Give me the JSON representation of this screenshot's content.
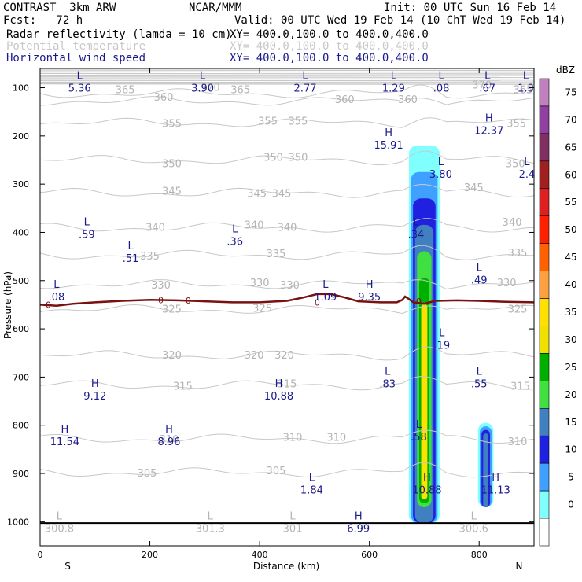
{
  "header": {
    "left_title": "CONTRAST  3km ARW",
    "center_title": "NCAR/MMM",
    "init": "Init: 00 UTC Sun 16 Feb 14",
    "fcst": "Fcst:   72 h",
    "valid": "Valid: 00 UTC Wed 19 Feb 14 (10 ChT Wed 19 Feb 14)",
    "fields": [
      {
        "name": "Radar reflectivity (lamda = 10 cm)",
        "xy": "XY= 400.0,100.0 to 400.0,400.0",
        "color": "#000000"
      },
      {
        "name": "Potential temperature",
        "xy": "XY= 400.0,100.0 to 400.0,400.0",
        "color": "#c8c8c8"
      },
      {
        "name": "Horizontal wind speed",
        "xy": "XY= 400.0,100.0 to 400.0,400.0",
        "color": "#1a1a8c"
      }
    ]
  },
  "colorbar": {
    "unit": "dBZ",
    "ticks": [
      "75",
      "70",
      "65",
      "60",
      "55",
      "50",
      "45",
      "40",
      "35",
      "30",
      "25",
      "20",
      "15",
      "10",
      "5",
      "0"
    ],
    "colors": [
      "#c080c0",
      "#9040a0",
      "#803060",
      "#a02020",
      "#e02020",
      "#ff2000",
      "#ff6000",
      "#ffa040",
      "#ffe000",
      "#f0e000",
      "#00b000",
      "#40e040",
      "#4080c0",
      "#2020e0",
      "#40a0ff",
      "#80ffff",
      "#ffffff"
    ]
  },
  "chart_data": {
    "type": "contour",
    "xlabel": "Distance (km)",
    "ylabel": "Pressure (hPa)",
    "x_ticks": [
      "0",
      "200",
      "400",
      "600",
      "800"
    ],
    "x_end_labels": {
      "left": "S",
      "right": "N"
    },
    "y_ticks": [
      "100",
      "200",
      "300",
      "400",
      "500",
      "600",
      "700",
      "800",
      "900",
      "1000"
    ],
    "xlim": [
      0,
      900
    ],
    "ylim": [
      1050,
      60
    ],
    "theta_labels": [
      {
        "t": "365",
        "x": 155,
        "p": 105
      },
      {
        "t": "370",
        "x": 310,
        "p": 100
      },
      {
        "t": "365",
        "x": 365,
        "p": 105
      },
      {
        "t": "360",
        "x": 225,
        "p": 120
      },
      {
        "t": "360",
        "x": 555,
        "p": 125
      },
      {
        "t": "360",
        "x": 670,
        "p": 125
      },
      {
        "t": "370",
        "x": 805,
        "p": 95
      },
      {
        "t": "365",
        "x": 880,
        "p": 105
      },
      {
        "t": "355",
        "x": 415,
        "p": 170
      },
      {
        "t": "355",
        "x": 470,
        "p": 170
      },
      {
        "t": "355",
        "x": 240,
        "p": 175
      },
      {
        "t": "355",
        "x": 868,
        "p": 175
      },
      {
        "t": "350",
        "x": 425,
        "p": 245
      },
      {
        "t": "350",
        "x": 470,
        "p": 245
      },
      {
        "t": "350",
        "x": 240,
        "p": 258
      },
      {
        "t": "350",
        "x": 866,
        "p": 258
      },
      {
        "t": "345",
        "x": 395,
        "p": 320
      },
      {
        "t": "345",
        "x": 790,
        "p": 308
      },
      {
        "t": "345",
        "x": 440,
        "p": 320
      },
      {
        "t": "345",
        "x": 240,
        "p": 315
      },
      {
        "t": "340",
        "x": 210,
        "p": 390
      },
      {
        "t": "340",
        "x": 390,
        "p": 385
      },
      {
        "t": "340",
        "x": 450,
        "p": 390
      },
      {
        "t": "340",
        "x": 860,
        "p": 380
      },
      {
        "t": "335",
        "x": 200,
        "p": 450
      },
      {
        "t": "335",
        "x": 430,
        "p": 445
      },
      {
        "t": "335",
        "x": 870,
        "p": 443
      },
      {
        "t": "330",
        "x": 220,
        "p": 510
      },
      {
        "t": "330",
        "x": 400,
        "p": 505
      },
      {
        "t": "330",
        "x": 455,
        "p": 510
      },
      {
        "t": "330",
        "x": 850,
        "p": 505
      },
      {
        "t": "325",
        "x": 240,
        "p": 560
      },
      {
        "t": "325",
        "x": 405,
        "p": 558
      },
      {
        "t": "325",
        "x": 870,
        "p": 560
      },
      {
        "t": "320",
        "x": 240,
        "p": 655
      },
      {
        "t": "320",
        "x": 390,
        "p": 655
      },
      {
        "t": "320",
        "x": 445,
        "p": 655
      },
      {
        "t": "315",
        "x": 260,
        "p": 720
      },
      {
        "t": "315",
        "x": 450,
        "p": 715
      },
      {
        "t": "315",
        "x": 875,
        "p": 720
      },
      {
        "t": "310",
        "x": 235,
        "p": 830
      },
      {
        "t": "310",
        "x": 460,
        "p": 826
      },
      {
        "t": "310",
        "x": 540,
        "p": 826
      },
      {
        "t": "310",
        "x": 870,
        "p": 835
      },
      {
        "t": "305",
        "x": 195,
        "p": 900
      },
      {
        "t": "305",
        "x": 430,
        "p": 895
      }
    ],
    "theta_levels_p": [
      112,
      128,
      173,
      250,
      318,
      390,
      447,
      508,
      560,
      655,
      717,
      828,
      898
    ],
    "wind_labels": [
      {
        "t": "L",
        "v": "5.36",
        "x": 72,
        "p": 92
      },
      {
        "t": "L",
        "v": "3.90",
        "x": 296,
        "p": 92
      },
      {
        "t": "L",
        "v": "2.77",
        "x": 483,
        "p": 92
      },
      {
        "t": "L",
        "v": "1.29",
        "x": 644,
        "p": 92
      },
      {
        "t": "L",
        "v": ".08",
        "x": 731,
        "p": 92
      },
      {
        "t": "L",
        "v": ".67",
        "x": 815,
        "p": 92
      },
      {
        "t": "L",
        "v": "1.3",
        "x": 885,
        "p": 92
      },
      {
        "t": "H",
        "v": "15.91",
        "x": 635,
        "p": 210
      },
      {
        "t": "H",
        "v": "12.37",
        "x": 818,
        "p": 180
      },
      {
        "t": "L",
        "v": "3.80",
        "x": 730,
        "p": 270
      },
      {
        "t": "L",
        "v": "2.4",
        "x": 887,
        "p": 270
      },
      {
        "t": "L",
        "v": ".59",
        "x": 85,
        "p": 395
      },
      {
        "t": "L",
        "v": ".36",
        "x": 355,
        "p": 410
      },
      {
        "t": "L",
        "v": ".51",
        "x": 165,
        "p": 445
      },
      {
        "t": "L",
        "v": ".34",
        "x": 685,
        "p": 395
      },
      {
        "t": "L",
        "v": ".49",
        "x": 800,
        "p": 490
      },
      {
        "t": "L",
        "v": ".08",
        "x": 30,
        "p": 525
      },
      {
        "t": "L",
        "v": "1.09",
        "x": 520,
        "p": 525
      },
      {
        "t": "H",
        "v": "9.35",
        "x": 600,
        "p": 525
      },
      {
        "t": "L",
        "v": ".19",
        "x": 732,
        "p": 625
      },
      {
        "t": "L",
        "v": ".83",
        "x": 633,
        "p": 705
      },
      {
        "t": "L",
        "v": ".55",
        "x": 800,
        "p": 705
      },
      {
        "t": "H",
        "v": "9.12",
        "x": 100,
        "p": 730
      },
      {
        "t": "H",
        "v": "10.88",
        "x": 435,
        "p": 730
      },
      {
        "t": "L",
        "v": ".58",
        "x": 690,
        "p": 815
      },
      {
        "t": "H",
        "v": "11.54",
        "x": 45,
        "p": 825
      },
      {
        "t": "H",
        "v": "8.96",
        "x": 235,
        "p": 825
      },
      {
        "t": "L",
        "v": "1.84",
        "x": 495,
        "p": 925
      },
      {
        "t": "H",
        "v": "10.88",
        "x": 705,
        "p": 925
      },
      {
        "t": "H",
        "v": "11.13",
        "x": 830,
        "p": 925
      },
      {
        "t": "H",
        "v": "6.99",
        "x": 580,
        "p": 1005
      }
    ],
    "bottom_theta_labels": [
      {
        "t": "L",
        "v": "300.8",
        "x": 35,
        "p": 1005
      },
      {
        "t": "L",
        "v": "301.3",
        "x": 310,
        "p": 1005
      },
      {
        "t": "L",
        "v": "301",
        "x": 460,
        "p": 1005
      },
      {
        "t": "L",
        "v": "300.6",
        "x": 790,
        "p": 1005
      }
    ],
    "freezing_level": {
      "label": "0",
      "points": [
        [
          0,
          550
        ],
        [
          30,
          552
        ],
        [
          60,
          548
        ],
        [
          100,
          545
        ],
        [
          150,
          542
        ],
        [
          200,
          540
        ],
        [
          250,
          541
        ],
        [
          300,
          543
        ],
        [
          350,
          545
        ],
        [
          400,
          545
        ],
        [
          450,
          542
        ],
        [
          480,
          535
        ],
        [
          505,
          528
        ],
        [
          530,
          528
        ],
        [
          555,
          535
        ],
        [
          580,
          543
        ],
        [
          620,
          545
        ],
        [
          650,
          545
        ],
        [
          660,
          540
        ],
        [
          665,
          533
        ],
        [
          672,
          538
        ],
        [
          680,
          545
        ],
        [
          700,
          548
        ],
        [
          720,
          542
        ],
        [
          760,
          541
        ],
        [
          800,
          542
        ],
        [
          850,
          544
        ],
        [
          900,
          545
        ]
      ],
      "zero_marks": [
        [
          15,
          550
        ],
        [
          220,
          540
        ],
        [
          270,
          541
        ],
        [
          505,
          545
        ],
        [
          690,
          543
        ]
      ]
    },
    "reflectivity_cells": [
      {
        "x": 700,
        "x_halfwidth": 28,
        "p_top": 220,
        "p_bottom": 1003,
        "max_dbz": 35
      },
      {
        "x": 812,
        "x_halfwidth": 14,
        "p_top": 795,
        "p_bottom": 970,
        "max_dbz": 20
      }
    ]
  }
}
